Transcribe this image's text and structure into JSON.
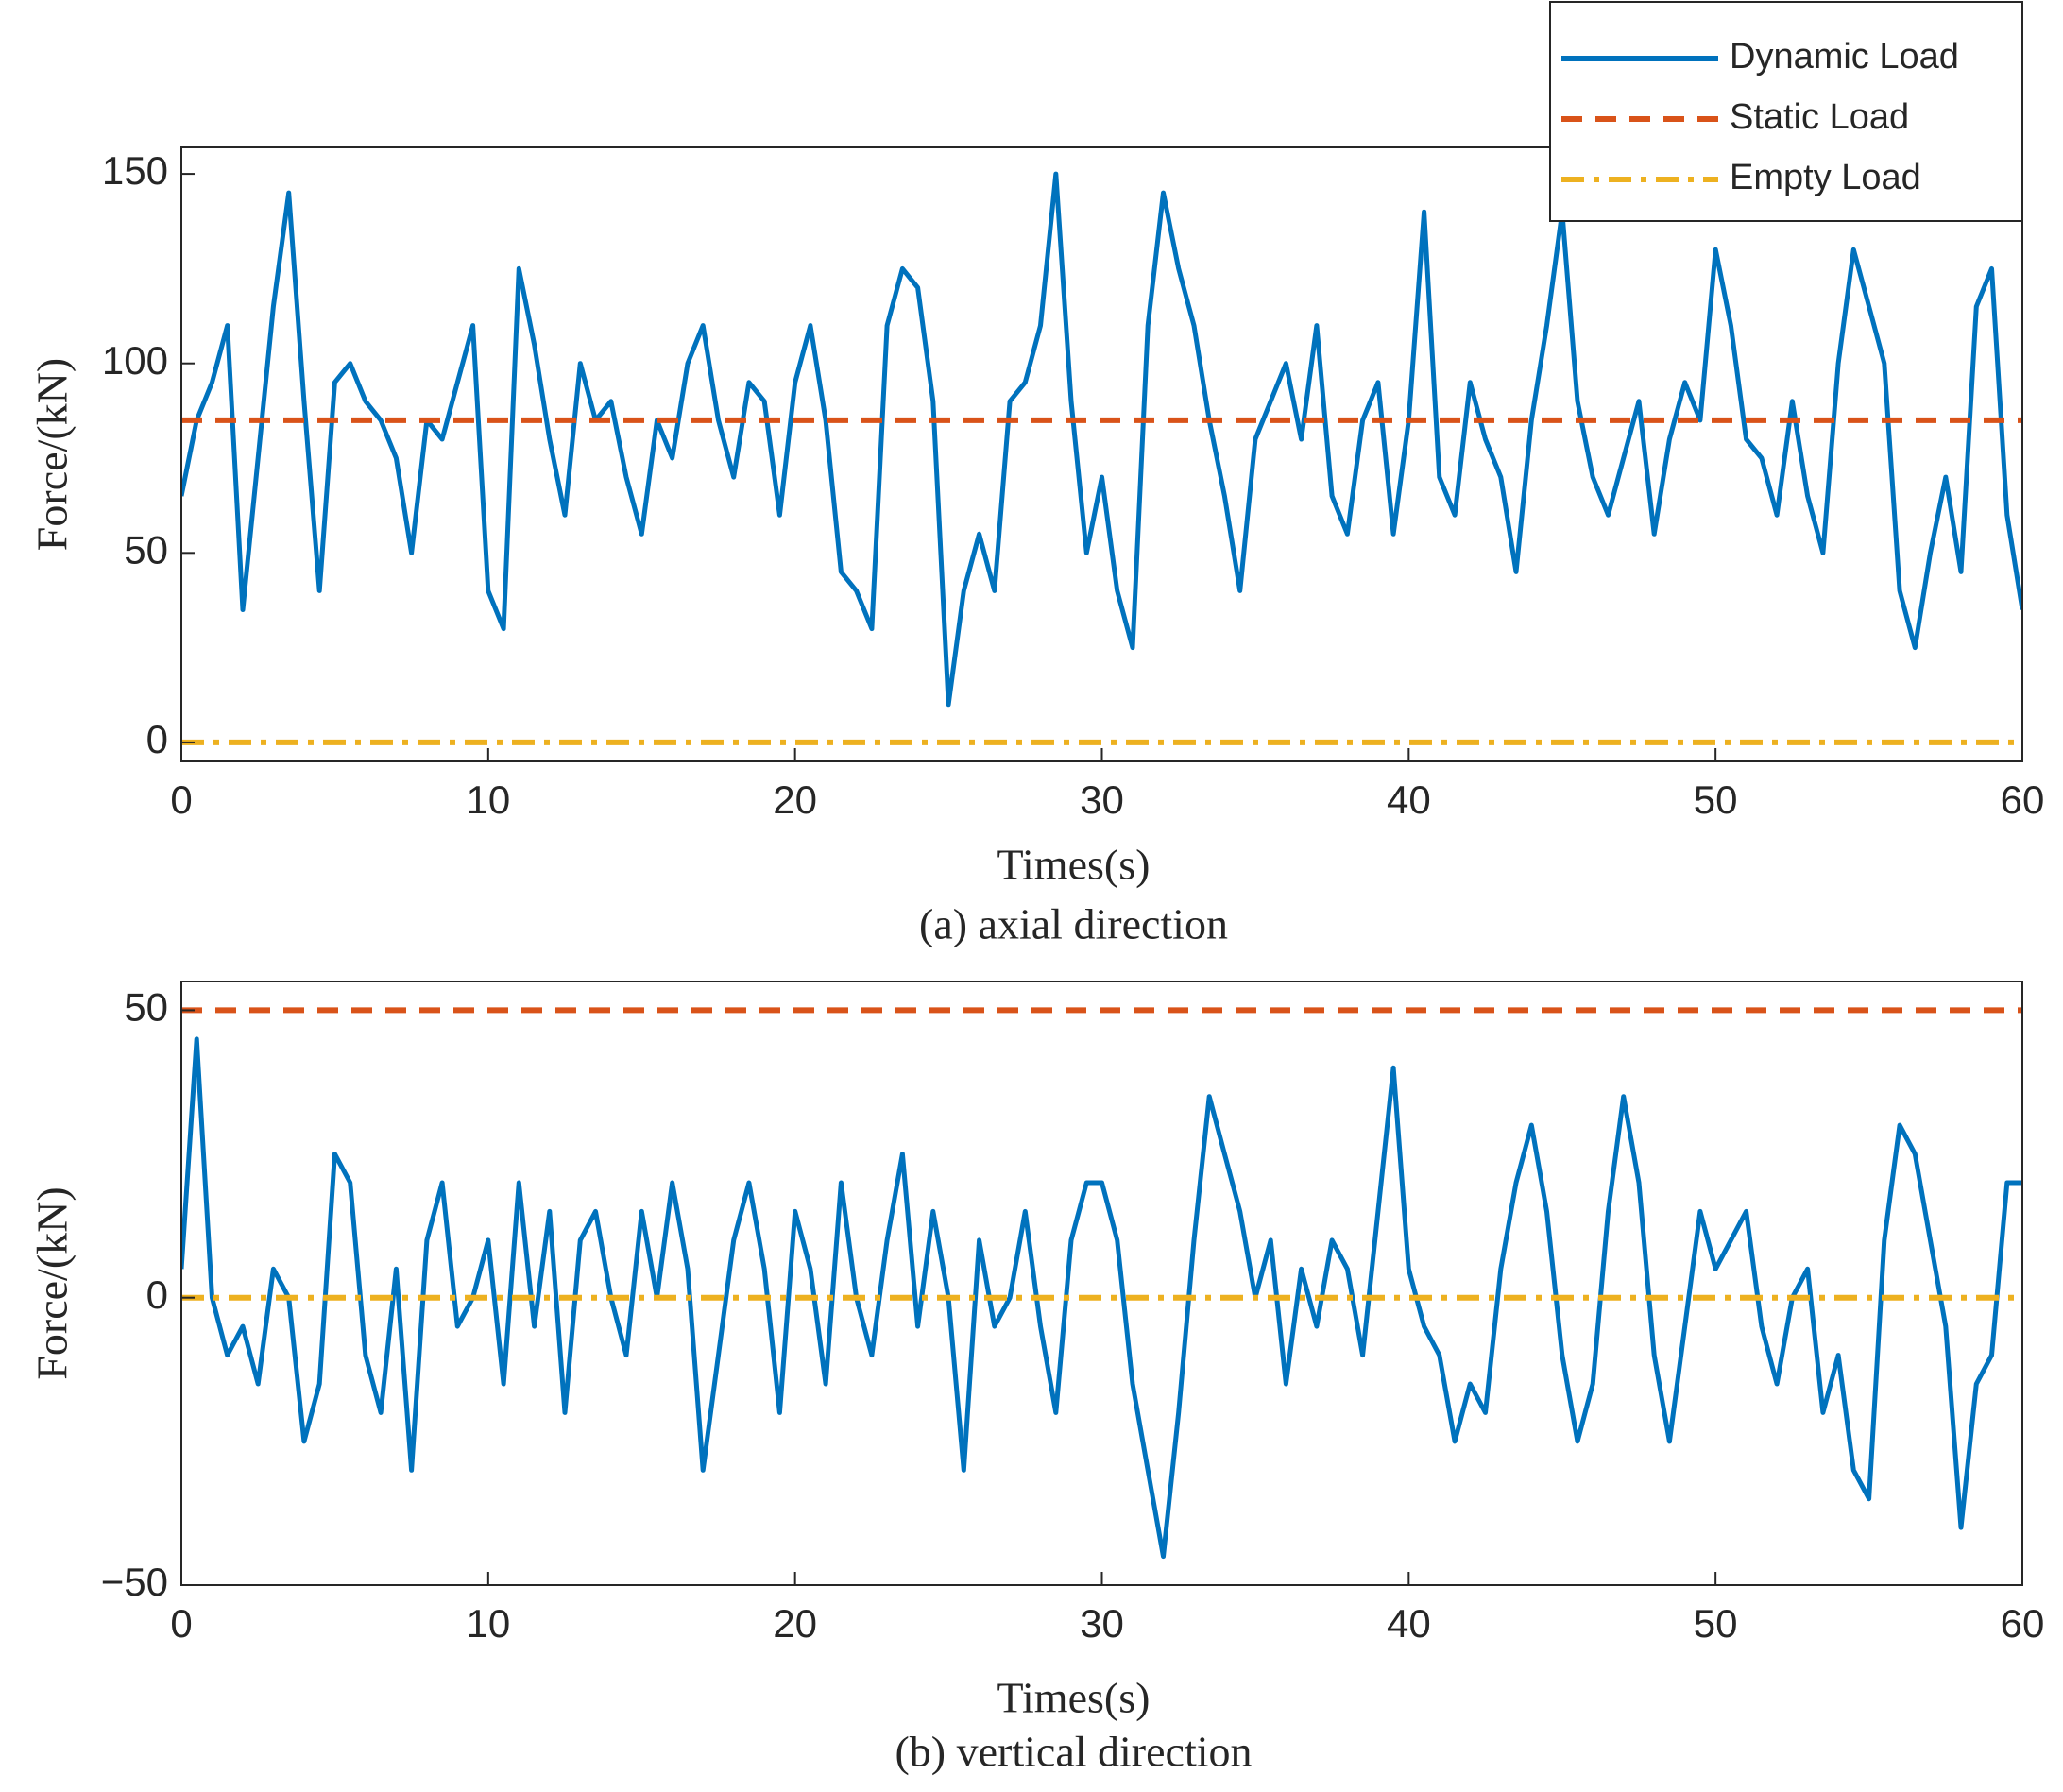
{
  "chart_data": [
    {
      "type": "line",
      "title": "(a) axial direction",
      "x_label": "Times(s)",
      "y_label": "Force/(kN)",
      "xlim": [
        0,
        60
      ],
      "ylim": [
        -5,
        157
      ],
      "xticks": [
        0,
        10,
        20,
        30,
        40,
        50,
        60
      ],
      "yticks": [
        0,
        50,
        100,
        150
      ],
      "legend": "northeast",
      "series": [
        {
          "name": "Dynamic Load",
          "color": "#0072BD",
          "style": "solid",
          "x": [
            0,
            0.5,
            1,
            1.5,
            2,
            2.5,
            3,
            3.5,
            4,
            4.5,
            5,
            5.5,
            6,
            6.5,
            7,
            7.5,
            8,
            8.5,
            9,
            9.5,
            10,
            10.5,
            11,
            11.5,
            12,
            12.5,
            13,
            13.5,
            14,
            14.5,
            15,
            15.5,
            16,
            16.5,
            17,
            17.5,
            18,
            18.5,
            19,
            19.5,
            20,
            20.5,
            21,
            21.5,
            22,
            22.5,
            23,
            23.5,
            24,
            24.5,
            25,
            25.5,
            26,
            26.5,
            27,
            27.5,
            28,
            28.5,
            29,
            29.5,
            30,
            30.5,
            31,
            31.5,
            32,
            32.5,
            33,
            33.5,
            34,
            34.5,
            35,
            35.5,
            36,
            36.5,
            37,
            37.5,
            38,
            38.5,
            39,
            39.5,
            40,
            40.5,
            41,
            41.5,
            42,
            42.5,
            43,
            43.5,
            44,
            44.5,
            45,
            45.5,
            46,
            46.5,
            47,
            47.5,
            48,
            48.5,
            49,
            49.5,
            50,
            50.5,
            51,
            51.5,
            52,
            52.5,
            53,
            53.5,
            54,
            54.5,
            55,
            55.5,
            56,
            56.5,
            57,
            57.5,
            58,
            58.5,
            59,
            59.5,
            60
          ],
          "values": [
            65,
            85,
            95,
            110,
            35,
            75,
            115,
            145,
            90,
            40,
            95,
            100,
            90,
            85,
            75,
            50,
            85,
            80,
            95,
            110,
            40,
            30,
            125,
            105,
            80,
            60,
            100,
            85,
            90,
            70,
            55,
            85,
            75,
            100,
            110,
            85,
            70,
            95,
            90,
            60,
            95,
            110,
            85,
            45,
            40,
            30,
            110,
            125,
            120,
            90,
            10,
            40,
            55,
            40,
            90,
            95,
            110,
            150,
            90,
            50,
            70,
            40,
            25,
            110,
            145,
            125,
            110,
            85,
            65,
            40,
            80,
            90,
            100,
            80,
            110,
            65,
            55,
            85,
            95,
            55,
            85,
            140,
            70,
            60,
            95,
            80,
            70,
            45,
            85,
            110,
            140,
            90,
            70,
            60,
            75,
            90,
            55,
            80,
            95,
            85,
            130,
            110,
            80,
            75,
            60,
            90,
            65,
            50,
            100,
            130,
            115,
            100,
            40,
            25,
            50,
            70,
            45,
            115,
            125,
            60,
            35
          ]
        },
        {
          "name": "Static Load",
          "color": "#D95319",
          "style": "dashed",
          "x": [
            0,
            60
          ],
          "values": [
            85,
            85
          ]
        },
        {
          "name": "Empty Load",
          "color": "#EDB120",
          "style": "dashdot",
          "x": [
            0,
            60
          ],
          "values": [
            0,
            0
          ]
        }
      ]
    },
    {
      "type": "line",
      "title": "(b) vertical direction",
      "x_label": "Times(s)",
      "y_label": "Force/(kN)",
      "xlim": [
        0,
        60
      ],
      "ylim": [
        -50,
        55
      ],
      "xticks": [
        0,
        10,
        20,
        30,
        40,
        50,
        60
      ],
      "yticks": [
        {
          "value": -50,
          "label": "−50"
        },
        0,
        50
      ],
      "series": [
        {
          "color": "#0072BD",
          "style": "solid",
          "x": [
            0,
            0.5,
            1,
            1.5,
            2,
            2.5,
            3,
            3.5,
            4,
            4.5,
            5,
            5.5,
            6,
            6.5,
            7,
            7.5,
            8,
            8.5,
            9,
            9.5,
            10,
            10.5,
            11,
            11.5,
            12,
            12.5,
            13,
            13.5,
            14,
            14.5,
            15,
            15.5,
            16,
            16.5,
            17,
            17.5,
            18,
            18.5,
            19,
            19.5,
            20,
            20.5,
            21,
            21.5,
            22,
            22.5,
            23,
            23.5,
            24,
            24.5,
            25,
            25.5,
            26,
            26.5,
            27,
            27.5,
            28,
            28.5,
            29,
            29.5,
            30,
            30.5,
            31,
            31.5,
            32,
            32.5,
            33,
            33.5,
            34,
            34.5,
            35,
            35.5,
            36,
            36.5,
            37,
            37.5,
            38,
            38.5,
            39,
            39.5,
            40,
            40.5,
            41,
            41.5,
            42,
            42.5,
            43,
            43.5,
            44,
            44.5,
            45,
            45.5,
            46,
            46.5,
            47,
            47.5,
            48,
            48.5,
            49,
            49.5,
            50,
            50.5,
            51,
            51.5,
            52,
            52.5,
            53,
            53.5,
            54,
            54.5,
            55,
            55.5,
            56,
            56.5,
            57,
            57.5,
            58,
            58.5,
            59,
            59.5,
            60
          ],
          "values": [
            5,
            45,
            0,
            -10,
            -5,
            -15,
            5,
            0,
            -25,
            -15,
            25,
            20,
            -10,
            -20,
            5,
            -30,
            10,
            20,
            -5,
            0,
            10,
            -15,
            20,
            -5,
            15,
            -20,
            10,
            15,
            0,
            -10,
            15,
            0,
            20,
            5,
            -30,
            -10,
            10,
            20,
            5,
            -20,
            15,
            5,
            -15,
            20,
            0,
            -10,
            10,
            25,
            -5,
            15,
            0,
            -30,
            10,
            -5,
            0,
            15,
            -5,
            -20,
            10,
            20,
            20,
            10,
            -15,
            -30,
            -45,
            -20,
            10,
            35,
            25,
            15,
            0,
            10,
            -15,
            5,
            -5,
            10,
            5,
            -10,
            15,
            40,
            5,
            -5,
            -10,
            -25,
            -15,
            -20,
            5,
            20,
            30,
            15,
            -10,
            -25,
            -15,
            15,
            35,
            20,
            -10,
            -25,
            -5,
            15,
            5,
            10,
            15,
            -5,
            -15,
            0,
            5,
            -20,
            -10,
            -30,
            -35,
            10,
            30,
            25,
            10,
            -5,
            -40,
            -15,
            -10,
            20,
            20
          ]
        },
        {
          "color": "#D95319",
          "style": "dashed",
          "x": [
            0,
            60
          ],
          "values": [
            50,
            50
          ]
        },
        {
          "color": "#EDB120",
          "style": "dashdot",
          "x": [
            0,
            60
          ],
          "values": [
            0,
            0
          ]
        }
      ]
    }
  ]
}
